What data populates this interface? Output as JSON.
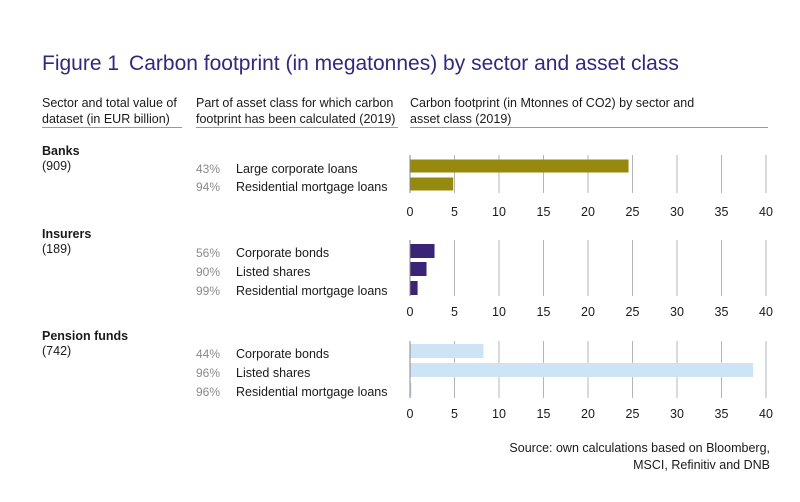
{
  "title": {
    "figure": "Figure 1",
    "text": "Carbon footprint (in megatonnes) by sector and asset class"
  },
  "headers": {
    "col1": [
      "Sector and total value of",
      "dataset (in EUR billion)"
    ],
    "col2": [
      "Part of asset class for which carbon",
      "footprint has been calculated (2019)"
    ],
    "col3": [
      "Carbon footprint (in Mtonnes of CO2) by sector and",
      "asset class (2019)"
    ]
  },
  "source": [
    "Source: own calculations based on Bloomberg,",
    "MSCI, Refinitiv and DNB"
  ],
  "colors": {
    "title": "#2f2a7c",
    "banks": "#958a0e",
    "insurers": "#3a2478",
    "pension": "#cce4f6"
  },
  "chart_data": {
    "type": "bar",
    "orientation": "horizontal",
    "xlim": [
      0,
      40
    ],
    "xticks": [
      0,
      5,
      10,
      15,
      20,
      25,
      30,
      35,
      40
    ],
    "grid": true,
    "groups": [
      {
        "name": "Banks",
        "total": "(909)",
        "color": "#958a0e",
        "rows": [
          {
            "label": "Large corporate loans",
            "pct": "43%",
            "value": 24.5
          },
          {
            "label": "Residential mortgage loans",
            "pct": "94%",
            "value": 4.8
          }
        ]
      },
      {
        "name": "Insurers",
        "total": "(189)",
        "color": "#3a2478",
        "rows": [
          {
            "label": "Corporate bonds",
            "pct": "56%",
            "value": 2.7
          },
          {
            "label": "Listed shares",
            "pct": "90%",
            "value": 1.8
          },
          {
            "label": "Residential mortgage loans",
            "pct": "99%",
            "value": 0.8
          }
        ]
      },
      {
        "name": "Pension funds",
        "total": "(742)",
        "color": "#cce4f6",
        "rows": [
          {
            "label": "Corporate bonds",
            "pct": "44%",
            "value": 8.2
          },
          {
            "label": "Listed shares",
            "pct": "96%",
            "value": 38.5
          },
          {
            "label": "Residential mortgage loans",
            "pct": "96%",
            "value": 0.1
          }
        ]
      }
    ]
  }
}
